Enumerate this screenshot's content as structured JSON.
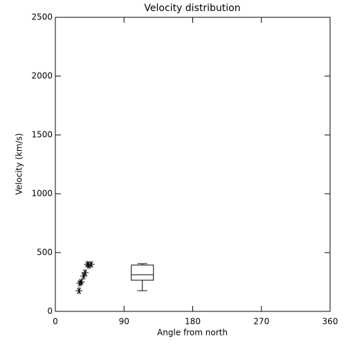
{
  "chart_data": {
    "type": "scatter",
    "title": "Velocity distribution",
    "x_label": "Angle from north",
    "y_label": "Velocity (km/s)",
    "x": [
      31,
      32,
      34,
      37,
      39,
      42,
      44,
      47
    ],
    "values": [
      176,
      240,
      250,
      300,
      330,
      400,
      390,
      400
    ],
    "color": "#000000",
    "box": {
      "x": 114,
      "min": 176,
      "q1": 265,
      "median": 312,
      "q3": 394,
      "max": 406
    },
    "xlim": [
      0,
      360
    ],
    "xticks": [
      0,
      90,
      180,
      270,
      360
    ],
    "ylim": [
      0,
      2500
    ],
    "yticks": [
      0,
      500,
      1000,
      1500,
      2000,
      2500
    ]
  }
}
